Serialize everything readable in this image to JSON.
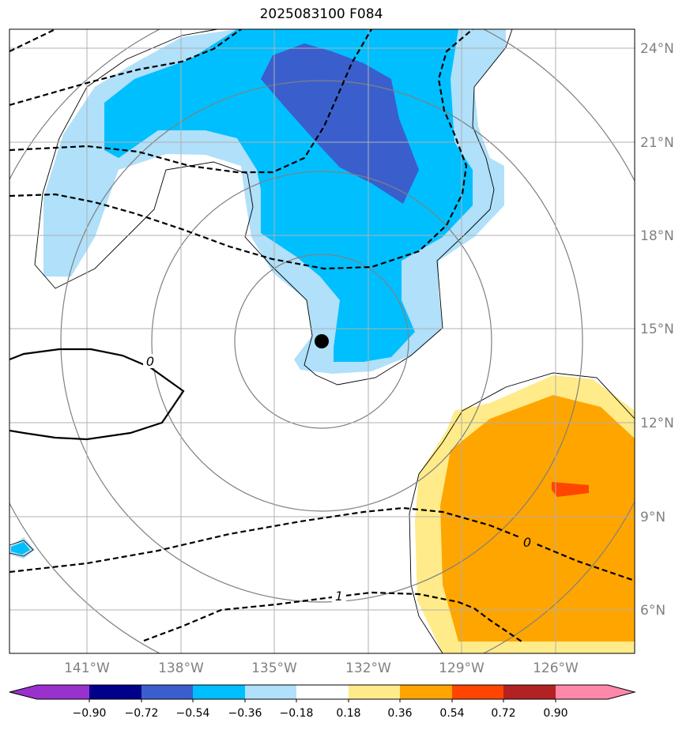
{
  "title": "2025083100 F084",
  "lon_labels": [
    "141°W",
    "138°W",
    "135°W",
    "132°W",
    "129°W",
    "126°W"
  ],
  "lat_labels": [
    "24°N",
    "21°N",
    "18°N",
    "15°N",
    "12°N",
    "9°N",
    "6°N"
  ],
  "contour_labels": [
    "0",
    "0",
    "1"
  ],
  "colorbar": {
    "ticks": [
      "−0.90",
      "−0.72",
      "−0.54",
      "−0.36",
      "−0.18",
      "0.18",
      "0.36",
      "0.54",
      "0.72",
      "0.90"
    ],
    "colors": [
      "#9932cc",
      "#00008b",
      "#3a5fcd",
      "#00bfff",
      "#b0e0fa",
      "#ffffff",
      "#ffeb8a",
      "#ffa500",
      "#ff4500",
      "#b22222",
      "#ff88aa"
    ]
  },
  "marker": {
    "label": "storm-center",
    "lon": -133.5,
    "lat": 14.6
  }
}
